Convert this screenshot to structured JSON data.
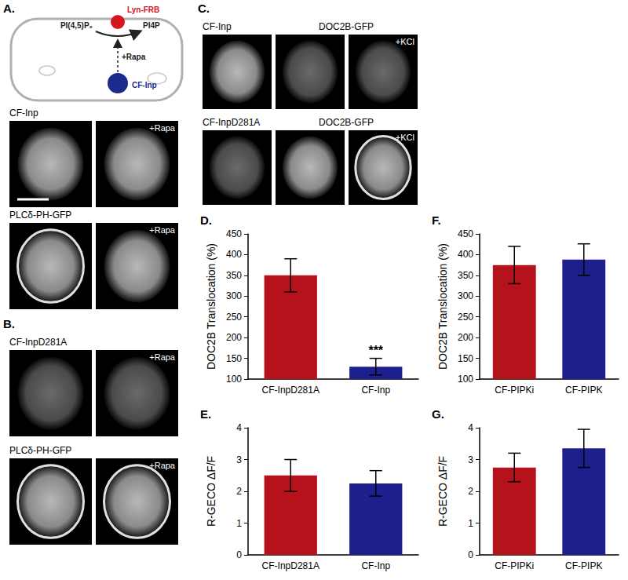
{
  "panels": {
    "A": {
      "label": "A.",
      "diagram": {
        "membrane_protein": "Lyn-FRB",
        "substrate": "PI(4,5)P₂",
        "product": "PI4P",
        "trigger": "+Rapa",
        "enzyme": "CF-Inp"
      },
      "rows": [
        {
          "name": "CF-Inp",
          "treated": "+Rapa"
        },
        {
          "name": "PLCδ-PH-GFP",
          "treated": "+Rapa"
        }
      ]
    },
    "B": {
      "label": "B.",
      "rows": [
        {
          "name": "CF-InpD281A",
          "treated": "+Rapa"
        },
        {
          "name": "PLCδ-PH-GFP",
          "treated": "+Rapa"
        }
      ]
    },
    "C": {
      "label": "C.",
      "rows": [
        {
          "name": "CF-Inp",
          "reporter": "DOC2B-GFP",
          "treated": "+KCl"
        },
        {
          "name": "CF-InpD281A",
          "reporter": "DOC2B-GFP",
          "treated": "+KCl"
        }
      ]
    }
  },
  "chart_data": [
    {
      "type": "bar",
      "title": "D.",
      "ylabel": "DOC2B Translocation (%)",
      "categories": [
        "CF-InpD281A",
        "CF-Inp"
      ],
      "values": [
        350,
        130
      ],
      "errors": [
        40,
        20
      ],
      "colors": [
        "#b5121b",
        "#1c1f8c"
      ],
      "ylim": [
        100,
        450
      ],
      "yticks": [
        100,
        150,
        200,
        250,
        300,
        350,
        400,
        450
      ],
      "annotations": [
        {
          "category": "CF-Inp",
          "text": "***"
        }
      ],
      "grid": false
    },
    {
      "type": "bar",
      "title": "E.",
      "ylabel": "R-GECO ΔF/F",
      "categories": [
        "CF-InpD281A",
        "CF-Inp"
      ],
      "values": [
        2.5,
        2.25
      ],
      "errors": [
        0.5,
        0.4
      ],
      "colors": [
        "#b5121b",
        "#1c1f8c"
      ],
      "ylim": [
        0,
        4
      ],
      "yticks": [
        0,
        1,
        2,
        3,
        4
      ],
      "grid": false
    },
    {
      "type": "bar",
      "title": "F.",
      "ylabel": "DOC2B Translocation (%)",
      "categories": [
        "CF-PIPKi",
        "CF-PIPK"
      ],
      "values": [
        375,
        388
      ],
      "errors": [
        45,
        38
      ],
      "colors": [
        "#b5121b",
        "#1c1f8c"
      ],
      "ylim": [
        100,
        450
      ],
      "yticks": [
        100,
        150,
        200,
        250,
        300,
        350,
        400,
        450
      ],
      "grid": false
    },
    {
      "type": "bar",
      "title": "G.",
      "ylabel": "R-GECO ΔF/F",
      "categories": [
        "CF-PIPKi",
        "CF-PIPK"
      ],
      "values": [
        2.75,
        3.35
      ],
      "errors": [
        0.45,
        0.6
      ],
      "colors": [
        "#b5121b",
        "#1c1f8c"
      ],
      "ylim": [
        0,
        4
      ],
      "yticks": [
        0,
        1,
        2,
        3,
        4
      ],
      "grid": false
    }
  ]
}
